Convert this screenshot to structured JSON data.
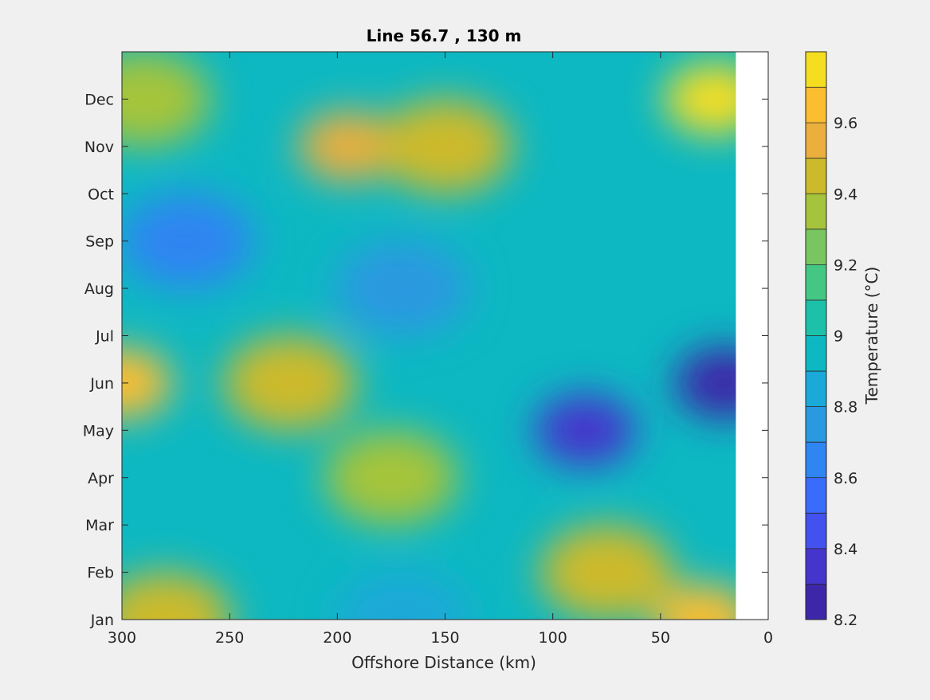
{
  "chart_data": {
    "type": "heatmap",
    "subtype": "filled-contour",
    "title": "Line 56.7 , 130 m",
    "xlabel": "Offshore Distance (km)",
    "ylabel": "",
    "xlim": [
      300,
      0
    ],
    "x_direction": "reversed",
    "xticks": [
      300,
      250,
      200,
      150,
      100,
      50,
      0
    ],
    "ylim": [
      "Jan",
      "Jan (next year)"
    ],
    "yticks": [
      "Jan",
      "Feb",
      "Mar",
      "Apr",
      "May",
      "Jun",
      "Jul",
      "Aug",
      "Sep",
      "Oct",
      "Nov",
      "Dec"
    ],
    "data_extent_km": [
      300,
      15
    ],
    "no_data_region_km": [
      15,
      0
    ],
    "colorbar": {
      "label": "Temperature (°C)",
      "range": [
        8.2,
        9.8
      ],
      "step": 0.1,
      "ticks": [
        8.2,
        8.4,
        8.6,
        8.8,
        9,
        9.2,
        9.4,
        9.6
      ],
      "colormap": "parula",
      "colors": [
        "#3e26a8",
        "#4535cc",
        "#4351ee",
        "#3a6cfc",
        "#2f85f2",
        "#2999e0",
        "#1aa9d8",
        "#0db8c2",
        "#1dc1a9",
        "#45c784",
        "#79c660",
        "#a5c43b",
        "#cdba2b",
        "#eaaf3d",
        "#fbbe30",
        "#f5de20"
      ]
    },
    "grid": false,
    "legend": "none",
    "features": [
      {
        "name": "warm core",
        "month": "Dec",
        "km": 25,
        "temp": 9.7
      },
      {
        "name": "warm patch",
        "month": "Nov",
        "km": 195,
        "temp": 9.55
      },
      {
        "name": "warm band",
        "month": "Nov",
        "km": 150,
        "temp": 9.45
      },
      {
        "name": "warm corner",
        "month": "Dec",
        "km": 290,
        "temp": 9.35
      },
      {
        "name": "cold band",
        "month": "Sep",
        "km": 270,
        "temp": 8.65
      },
      {
        "name": "cool eddy",
        "month": "Aug",
        "km": 170,
        "temp": 8.7
      },
      {
        "name": "cold core",
        "month": "May",
        "km": 85,
        "temp": 8.35
      },
      {
        "name": "coldest core",
        "month": "Jun",
        "km": 20,
        "temp": 8.25
      },
      {
        "name": "warm eddy",
        "month": "Jun",
        "km": 222,
        "temp": 9.45
      },
      {
        "name": "edge warm",
        "month": "Jun",
        "km": 300,
        "temp": 9.6
      },
      {
        "name": "warm patch",
        "month": "Apr",
        "km": 175,
        "temp": 9.35
      },
      {
        "name": "warm patch",
        "month": "Feb",
        "km": 75,
        "temp": 9.4
      },
      {
        "name": "warm corner",
        "month": "Jan",
        "km": 30,
        "temp": 9.6
      },
      {
        "name": "warm corner",
        "month": "Jan",
        "km": 280,
        "temp": 9.45
      },
      {
        "name": "cool band",
        "month": "Jan",
        "km": 170,
        "temp": 8.85
      }
    ]
  }
}
